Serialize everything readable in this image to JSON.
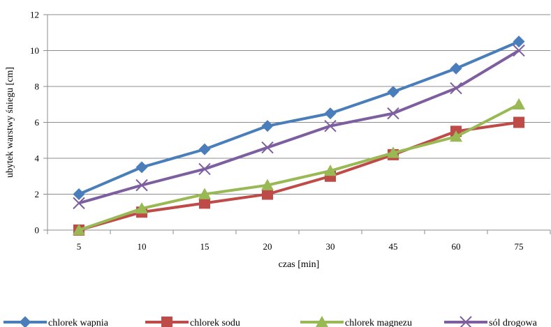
{
  "chart_data": {
    "type": "line",
    "title": "",
    "xlabel": "czas [min]",
    "ylabel": "ubytek warstwy śniegu [cm]",
    "categories": [
      "5",
      "10",
      "15",
      "20",
      "30",
      "45",
      "60",
      "75"
    ],
    "ylim": [
      0,
      12
    ],
    "yticks": [
      "0",
      "2",
      "4",
      "6",
      "8",
      "10",
      "12"
    ],
    "grid": "horizontal",
    "legend_position": "bottom",
    "series": [
      {
        "name": "chlorek wapnia",
        "color": "#4a7ebb",
        "marker": "diamond",
        "values": [
          2.0,
          3.5,
          4.5,
          5.8,
          6.5,
          7.7,
          9.0,
          10.5
        ]
      },
      {
        "name": "chlorek sodu",
        "color": "#be4b48",
        "marker": "square",
        "values": [
          0.0,
          1.0,
          1.5,
          2.0,
          3.0,
          4.2,
          5.5,
          6.0
        ]
      },
      {
        "name": "chlorek magnezu",
        "color": "#98b954",
        "marker": "triangle",
        "values": [
          0.0,
          1.2,
          2.0,
          2.5,
          3.3,
          4.3,
          5.2,
          7.0
        ]
      },
      {
        "name": "sól drogowa",
        "color": "#7d5fa0",
        "marker": "x",
        "values": [
          1.5,
          2.5,
          3.4,
          4.6,
          5.8,
          6.5,
          7.9,
          10.0
        ]
      }
    ]
  }
}
